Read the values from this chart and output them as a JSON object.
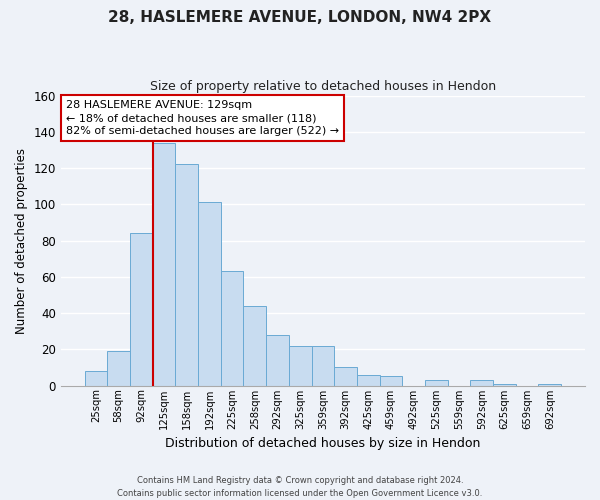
{
  "title": "28, HASLEMERE AVENUE, LONDON, NW4 2PX",
  "subtitle": "Size of property relative to detached houses in Hendon",
  "xlabel": "Distribution of detached houses by size in Hendon",
  "ylabel": "Number of detached properties",
  "bar_labels": [
    "25sqm",
    "58sqm",
    "92sqm",
    "125sqm",
    "158sqm",
    "192sqm",
    "225sqm",
    "258sqm",
    "292sqm",
    "325sqm",
    "359sqm",
    "392sqm",
    "425sqm",
    "459sqm",
    "492sqm",
    "525sqm",
    "559sqm",
    "592sqm",
    "625sqm",
    "659sqm",
    "692sqm"
  ],
  "bar_values": [
    8,
    19,
    84,
    134,
    122,
    101,
    63,
    44,
    28,
    22,
    22,
    10,
    6,
    5,
    0,
    3,
    0,
    3,
    1,
    0,
    1
  ],
  "bar_color": "#c8dcf0",
  "bar_edge_color": "#6aaad4",
  "annotation_text": "28 HASLEMERE AVENUE: 129sqm\n← 18% of detached houses are smaller (118)\n82% of semi-detached houses are larger (522) →",
  "annotation_box_color": "white",
  "annotation_box_edge_color": "#cc0000",
  "property_line_color": "#cc0000",
  "property_bar_index": 3,
  "ylim": [
    0,
    160
  ],
  "yticks": [
    0,
    20,
    40,
    60,
    80,
    100,
    120,
    140,
    160
  ],
  "footer_line1": "Contains HM Land Registry data © Crown copyright and database right 2024.",
  "footer_line2": "Contains public sector information licensed under the Open Government Licence v3.0.",
  "background_color": "#eef2f8",
  "grid_color": "#ffffff",
  "title_fontsize": 11,
  "subtitle_fontsize": 9,
  "ylabel_fontsize": 8.5,
  "xlabel_fontsize": 9
}
